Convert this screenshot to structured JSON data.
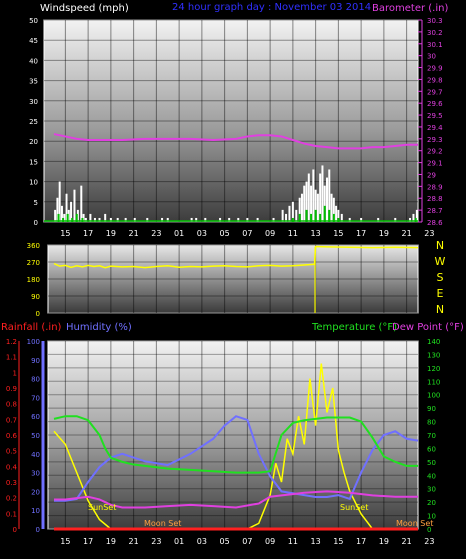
{
  "header": {
    "wind_label": "Windspeed (mph)",
    "graph_title": "24 hour graph day : November 03 2014",
    "baro_label": "Barometer (.in)"
  },
  "colors": {
    "wind": "#ffffff",
    "gust_green": "#00c000",
    "barometer": "#e040e0",
    "direction": "#ffff00",
    "rain": "#ff2020",
    "humidity": "#7070ff",
    "temperature": "#20e020",
    "dewpoint": "#e040e0",
    "solar": "#ffff00",
    "moon": "#ffa040",
    "title": "#3030ff"
  },
  "time_ticks": [
    "15",
    "17",
    "19",
    "21",
    "23",
    "01",
    "03",
    "05",
    "07",
    "09",
    "11",
    "13",
    "15",
    "17",
    "19",
    "21",
    "23"
  ],
  "chart_data": [
    {
      "type": "bar",
      "name": "wind",
      "ylabel": "Windspeed (mph)",
      "ylim": [
        0,
        50
      ],
      "y_ticks": [
        "0",
        "5",
        "10",
        "15",
        "20",
        "25",
        "30",
        "35",
        "40",
        "45",
        "50"
      ],
      "right_axis": {
        "label": "Barometer (.in)",
        "ylim": [
          28.6,
          30.3
        ],
        "ticks": [
          "28.6",
          "28.7",
          "28.8",
          "28.9",
          "29",
          "29.1",
          "29.2",
          "29.3",
          "29.4",
          "29.5",
          "29.6",
          "29.7",
          "29.8",
          "29.9",
          "30",
          "30.1",
          "30.2",
          "30.3"
        ]
      },
      "wind_bars": [
        [
          0.1,
          3
        ],
        [
          0.3,
          6
        ],
        [
          0.5,
          10
        ],
        [
          0.7,
          4
        ],
        [
          0.9,
          2
        ],
        [
          1.1,
          7
        ],
        [
          1.3,
          3
        ],
        [
          1.5,
          5
        ],
        [
          1.8,
          8
        ],
        [
          2.1,
          3
        ],
        [
          2.4,
          9
        ],
        [
          2.6,
          2
        ],
        [
          2.8,
          1
        ],
        [
          3.2,
          2
        ],
        [
          3.6,
          1
        ],
        [
          4.0,
          1
        ],
        [
          4.5,
          2
        ],
        [
          5.0,
          1
        ],
        [
          5.6,
          1
        ],
        [
          6.3,
          1
        ],
        [
          7.1,
          1
        ],
        [
          8.2,
          1
        ],
        [
          9.5,
          1
        ],
        [
          10.0,
          1
        ],
        [
          12.1,
          1
        ],
        [
          12.5,
          1
        ],
        [
          13.3,
          1
        ],
        [
          14.6,
          1
        ],
        [
          15.4,
          1
        ],
        [
          16.2,
          1
        ],
        [
          17.0,
          1
        ],
        [
          17.9,
          1
        ],
        [
          19.3,
          1
        ],
        [
          20.1,
          3
        ],
        [
          20.4,
          2
        ],
        [
          20.7,
          4
        ],
        [
          21.0,
          5
        ],
        [
          21.3,
          3
        ],
        [
          21.6,
          6
        ],
        [
          21.8,
          7
        ],
        [
          22.0,
          9
        ],
        [
          22.2,
          10
        ],
        [
          22.4,
          12
        ],
        [
          22.6,
          9
        ],
        [
          22.8,
          13
        ],
        [
          23.0,
          8
        ],
        [
          23.2,
          7
        ],
        [
          23.4,
          12
        ],
        [
          23.6,
          14
        ],
        [
          23.8,
          9
        ],
        [
          24.0,
          11
        ],
        [
          24.2,
          13
        ],
        [
          24.4,
          7
        ],
        [
          24.6,
          6
        ],
        [
          24.8,
          4
        ],
        [
          25.0,
          3
        ],
        [
          25.3,
          2
        ],
        [
          26.0,
          1
        ],
        [
          27.0,
          1
        ],
        [
          28.5,
          1
        ],
        [
          30.0,
          1
        ],
        [
          31.3,
          1
        ],
        [
          31.6,
          2
        ],
        [
          31.9,
          3
        ]
      ],
      "gust_bars": [
        [
          0.4,
          2
        ],
        [
          0.8,
          1
        ],
        [
          1.2,
          2
        ],
        [
          1.6,
          1
        ],
        [
          2.0,
          2
        ],
        [
          2.5,
          1
        ],
        [
          21.0,
          1
        ],
        [
          21.6,
          2
        ],
        [
          22.2,
          3
        ],
        [
          22.6,
          2
        ],
        [
          23.0,
          3
        ],
        [
          23.4,
          2
        ],
        [
          23.8,
          4
        ],
        [
          24.2,
          3
        ],
        [
          24.6,
          2
        ],
        [
          25.0,
          1
        ],
        [
          31.8,
          1
        ]
      ],
      "barometer": {
        "x": [
          0,
          1,
          2,
          3,
          4,
          6,
          8,
          10,
          12,
          14,
          16,
          17,
          18,
          19,
          20,
          21,
          22,
          23,
          24,
          25,
          26,
          27,
          28,
          29,
          30,
          31,
          32
        ],
        "y": [
          29.34,
          29.32,
          29.3,
          29.29,
          29.29,
          29.29,
          29.3,
          29.3,
          29.3,
          29.29,
          29.3,
          29.32,
          29.33,
          29.33,
          29.32,
          29.29,
          29.26,
          29.24,
          29.23,
          29.22,
          29.22,
          29.22,
          29.23,
          29.23,
          29.24,
          29.25,
          29.25
        ]
      }
    },
    {
      "type": "line",
      "name": "wind direction",
      "ylim": [
        0,
        360
      ],
      "y_ticks": [
        "0",
        "90",
        "180",
        "270",
        "360"
      ],
      "compass": [
        "N",
        "W",
        "S",
        "E",
        "N"
      ],
      "x": [
        0,
        0.5,
        1,
        1.5,
        2,
        2.5,
        3,
        3.5,
        4,
        4.5,
        5,
        6,
        7,
        8,
        9,
        10,
        11,
        12,
        13,
        14,
        15,
        16,
        17,
        18,
        19,
        20,
        21,
        22,
        22.9,
        23,
        24,
        26,
        28,
        30,
        32
      ],
      "y": [
        262,
        248,
        252,
        242,
        250,
        244,
        252,
        246,
        250,
        240,
        248,
        244,
        246,
        240,
        246,
        250,
        242,
        246,
        244,
        248,
        250,
        246,
        244,
        250,
        252,
        248,
        250,
        254,
        258,
        352,
        350,
        348,
        346,
        348,
        346
      ]
    },
    {
      "type": "line",
      "name": "temperature humidity rain",
      "left_label_rain": "Rainfall (.in)",
      "left_label_humidity": "Humidity (%)",
      "right_label_temp": "Temperature (°F)",
      "right_label_dew": "Dew Point (°F)",
      "rain_ticks": [
        "0",
        "0.1",
        "0.2",
        "0.3",
        "0.4",
        "0.5",
        "0.6",
        "0.7",
        "0.8",
        "0.9",
        "1",
        "1.1",
        "1.2"
      ],
      "humidity_ticks": [
        "0",
        "10",
        "20",
        "30",
        "40",
        "50",
        "60",
        "70",
        "80",
        "90",
        "100"
      ],
      "temp_ticks": [
        "0",
        "10",
        "20",
        "30",
        "40",
        "50",
        "60",
        "70",
        "80",
        "90",
        "100",
        "110",
        "120",
        "130",
        "140"
      ],
      "annotations": [
        "SunSet",
        "Moon Set",
        "SunSet",
        "Moon Set"
      ],
      "temperature": {
        "x": [
          0,
          1,
          2,
          3,
          4,
          4.5,
          5,
          6,
          7,
          8,
          10,
          12,
          14,
          16,
          18,
          19,
          20,
          21,
          22,
          24,
          26,
          27,
          28,
          29,
          30,
          31,
          32
        ],
        "y": [
          82,
          84,
          84,
          81,
          70,
          60,
          53,
          50,
          48,
          47,
          45,
          44,
          43,
          42,
          42,
          43,
          70,
          79,
          81,
          83,
          83,
          80,
          68,
          54,
          50,
          47,
          47
        ]
      },
      "dewpoint": {
        "x": [
          0,
          1,
          2,
          3,
          4,
          5,
          6,
          8,
          10,
          12,
          14,
          16,
          18,
          19,
          20,
          21,
          22,
          24,
          26,
          28,
          30,
          32
        ],
        "y": [
          22,
          22,
          23,
          24,
          22,
          18,
          16,
          16,
          17,
          18,
          17,
          16,
          19,
          24,
          25,
          26,
          27,
          28,
          27,
          25,
          24,
          24
        ]
      },
      "humidity": {
        "x": [
          0,
          1,
          2,
          3,
          4,
          5,
          6,
          8,
          10,
          12,
          14,
          15,
          16,
          17,
          18,
          19,
          20,
          21,
          22,
          23,
          24,
          25,
          26,
          27,
          28,
          29,
          30,
          31,
          32
        ],
        "y": [
          15,
          15,
          16,
          25,
          33,
          38,
          40,
          36,
          34,
          40,
          48,
          55,
          60,
          58,
          40,
          28,
          20,
          19,
          18,
          17,
          17,
          18,
          16,
          30,
          42,
          50,
          52,
          48,
          47
        ]
      },
      "solar": {
        "x": [
          0,
          1,
          2,
          3,
          4,
          5,
          6,
          17,
          18,
          19,
          19.5,
          20,
          20.5,
          21,
          21.5,
          22,
          22.5,
          23,
          23.5,
          24,
          24.5,
          25,
          25.5,
          26,
          27,
          28,
          32
        ],
        "y": [
          52,
          45,
          30,
          15,
          5,
          0,
          0,
          0,
          3,
          18,
          35,
          25,
          48,
          40,
          60,
          45,
          80,
          55,
          88,
          62,
          75,
          42,
          30,
          20,
          8,
          0,
          0
        ]
      },
      "rain": {
        "x": [
          0,
          32
        ],
        "y": [
          0,
          0
        ]
      }
    }
  ]
}
